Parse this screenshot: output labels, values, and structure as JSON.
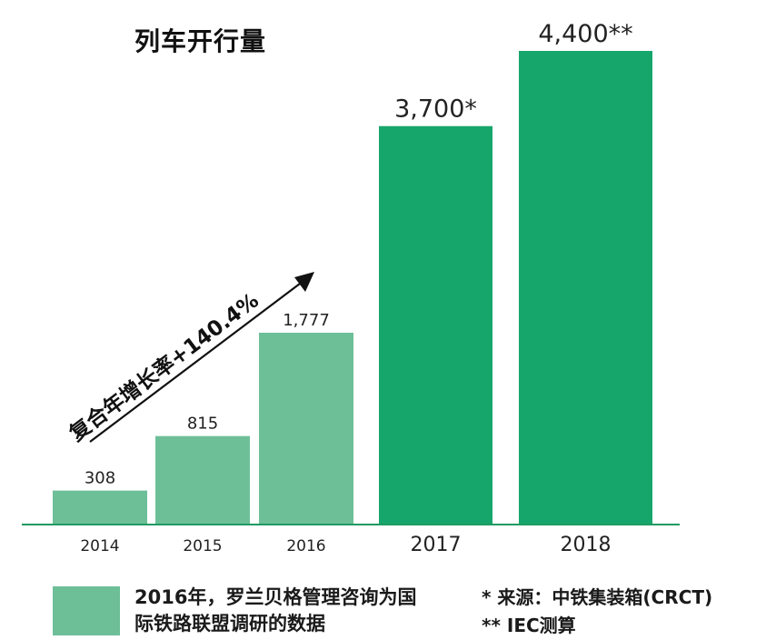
{
  "chart_data": {
    "type": "bar",
    "title": "列车开行量",
    "categories": [
      "2014",
      "2015",
      "2016",
      "2017",
      "2018"
    ],
    "values": [
      308,
      815,
      1777,
      3700,
      4400
    ],
    "value_labels": [
      "308",
      "815",
      "1,777",
      "3,700*",
      "4,400**"
    ],
    "ylim": [
      0,
      4400
    ],
    "grid": false,
    "colors": {
      "historical": "#6dbf98",
      "forecast": "#16a66c",
      "axis": "#1f9a63",
      "arrow": "#111111"
    },
    "annotation": "复合年增长率+140.4%"
  },
  "legend": {
    "label": "2016年，罗兰贝格管理咨询为国际铁路联盟调研的数据"
  },
  "notes": {
    "source_1": "* 来源：中铁集装箱(CRCT)",
    "source_2": "** IEC测算"
  }
}
